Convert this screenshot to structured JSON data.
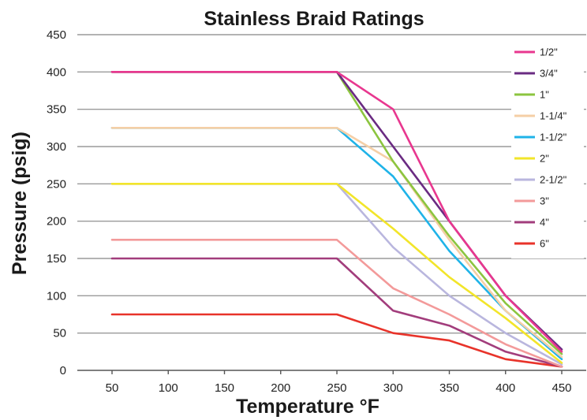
{
  "chart_data": {
    "type": "line",
    "title": "Stainless Braid Ratings",
    "xlabel": "Temperature °F",
    "ylabel": "Pressure (psig)",
    "x": [
      50,
      250,
      300,
      350,
      400,
      450
    ],
    "xticks": [
      50,
      100,
      150,
      200,
      250,
      300,
      350,
      400,
      450
    ],
    "ylim": [
      0,
      450
    ],
    "yticks": [
      0,
      50,
      100,
      150,
      200,
      250,
      300,
      350,
      400,
      450
    ],
    "grid": "horizontal",
    "legend_position": "right",
    "series": [
      {
        "name": "1/2\"",
        "color": "#e8378f",
        "values": [
          400,
          400,
          350,
          200,
          100,
          25
        ]
      },
      {
        "name": "3/4\"",
        "color": "#6a2b82",
        "values": [
          400,
          400,
          300,
          200,
          100,
          28
        ]
      },
      {
        "name": "1\"",
        "color": "#8cc53f",
        "values": [
          400,
          400,
          280,
          180,
          90,
          22
        ]
      },
      {
        "name": "1-1/4\"",
        "color": "#f5cfa6",
        "values": [
          325,
          325,
          280,
          175,
          80,
          18
        ]
      },
      {
        "name": "1-1/2\"",
        "color": "#1fb3e8",
        "values": [
          325,
          325,
          260,
          160,
          80,
          15
        ]
      },
      {
        "name": "2\"",
        "color": "#f2e52a",
        "values": [
          250,
          250,
          190,
          125,
          70,
          10
        ]
      },
      {
        "name": "2-1/2\"",
        "color": "#b9b6de",
        "values": [
          250,
          250,
          165,
          100,
          50,
          8
        ]
      },
      {
        "name": "3\"",
        "color": "#f39a9a",
        "values": [
          175,
          175,
          110,
          75,
          35,
          5
        ]
      },
      {
        "name": "4\"",
        "color": "#a23d7c",
        "values": [
          150,
          150,
          80,
          60,
          25,
          5
        ]
      },
      {
        "name": "6\"",
        "color": "#e8332a",
        "values": [
          75,
          75,
          50,
          40,
          15,
          5
        ]
      }
    ]
  }
}
